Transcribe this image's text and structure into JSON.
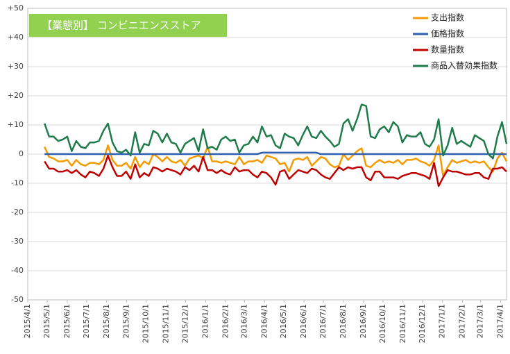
{
  "chart_data": {
    "type": "line",
    "title": "【業態別】 コンビニエンスストア",
    "x": [
      "2015/4/27",
      "2015/5/4",
      "2015/5/11",
      "2015/5/18",
      "2015/5/25",
      "2015/6/1",
      "2015/6/8",
      "2015/6/15",
      "2015/6/22",
      "2015/6/29",
      "2015/7/6",
      "2015/7/13",
      "2015/7/20",
      "2015/7/27",
      "2015/8/3",
      "2015/8/10",
      "2015/8/17",
      "2015/8/24",
      "2015/8/31",
      "2015/9/7",
      "2015/9/14",
      "2015/9/21",
      "2015/9/28",
      "2015/10/5",
      "2015/10/12",
      "2015/10/19",
      "2015/10/26",
      "2015/11/2",
      "2015/11/9",
      "2015/11/16",
      "2015/11/23",
      "2015/11/30",
      "2015/12/7",
      "2015/12/14",
      "2015/12/21",
      "2015/12/28",
      "2016/1/4",
      "2016/1/11",
      "2016/1/18",
      "2016/1/25",
      "2016/2/1",
      "2016/2/8",
      "2016/2/15",
      "2016/2/22",
      "2016/2/29",
      "2016/3/7",
      "2016/3/14",
      "2016/3/21",
      "2016/3/28",
      "2016/4/4",
      "2016/4/11",
      "2016/4/18",
      "2016/4/25",
      "2016/5/2",
      "2016/5/9",
      "2016/5/16",
      "2016/5/23",
      "2016/5/30",
      "2016/6/6",
      "2016/6/13",
      "2016/6/20",
      "2016/6/27",
      "2016/7/4",
      "2016/7/11",
      "2016/7/18",
      "2016/7/25",
      "2016/8/1",
      "2016/8/8",
      "2016/8/15",
      "2016/8/22",
      "2016/8/29",
      "2016/9/5",
      "2016/9/12",
      "2016/9/19",
      "2016/9/26",
      "2016/10/3",
      "2016/10/10",
      "2016/10/17",
      "2016/10/24",
      "2016/10/31",
      "2016/11/7",
      "2016/11/14",
      "2016/11/21",
      "2016/11/28",
      "2016/12/5",
      "2016/12/12",
      "2016/12/19",
      "2016/12/26",
      "2017/1/2",
      "2017/1/9",
      "2017/1/16",
      "2017/1/23",
      "2017/1/30",
      "2017/2/6",
      "2017/2/13",
      "2017/2/20",
      "2017/2/27",
      "2017/3/6",
      "2017/3/13",
      "2017/3/20",
      "2017/3/27",
      "2017/4/3",
      "2017/4/10"
    ],
    "series": [
      {
        "name": "支出指数",
        "color": "#f59b00",
        "values": [
          2.5,
          -1,
          -1.5,
          -2.5,
          -2.5,
          -2,
          -4,
          -2,
          -3.5,
          -4,
          -3,
          -3,
          -3.5,
          -2,
          3,
          -2,
          -4,
          -4,
          -3,
          -5,
          -1,
          -4.5,
          -2.5,
          -3.5,
          0,
          -1,
          -2.5,
          -1,
          -2.5,
          -3,
          -2,
          -4,
          -1.5,
          -1,
          -0.5,
          -1.5,
          2.5,
          -2.5,
          -2.5,
          -3,
          -2.5,
          -3,
          -3.5,
          -1,
          -3.5,
          -2.5,
          -2.5,
          -2,
          -3,
          -0.5,
          -1,
          -1.5,
          -3.5,
          -3,
          -6,
          -2,
          -1.5,
          -2,
          -1,
          -4,
          -2.5,
          -1,
          -1.5,
          -3.5,
          -4.5,
          -4,
          0,
          -2,
          -0.5,
          1,
          2,
          -4,
          -4.5,
          -3,
          -2,
          -3,
          -2.5,
          -3,
          -2,
          -3.5,
          -2,
          -2,
          -1.5,
          -2.5,
          -3,
          -4,
          -2,
          3,
          -7.5,
          -4.5,
          -2,
          -3,
          -2.5,
          -2,
          -3,
          -2.5,
          -3,
          -2.5,
          -4.5,
          -6,
          -1.5,
          0.5,
          -2.5
        ]
      },
      {
        "name": "価格指数",
        "color": "#2f5fae",
        "values": [
          0,
          0,
          0,
          0,
          0,
          0,
          0,
          0,
          0,
          0,
          0,
          0,
          0,
          0,
          0,
          0,
          0,
          0,
          0,
          0,
          0,
          0,
          0,
          0,
          0,
          0,
          0,
          0,
          0,
          0,
          0,
          0,
          0,
          0,
          0,
          0,
          0,
          0,
          0,
          0,
          0,
          0,
          0,
          0,
          0,
          0,
          0,
          0,
          0.5,
          0.5,
          0.5,
          0.5,
          0.5,
          0.5,
          0.5,
          0.5,
          0.5,
          0.5,
          0.5,
          0.5,
          0.5,
          0,
          0,
          0,
          0,
          0,
          0,
          0,
          0,
          0,
          0,
          0,
          0,
          0,
          0,
          0,
          0,
          0,
          0,
          0,
          0,
          0,
          0,
          0,
          0,
          0,
          0,
          0,
          0,
          0,
          0,
          0,
          0,
          0,
          0,
          0,
          0,
          0,
          0,
          0,
          0,
          0,
          0
        ]
      },
      {
        "name": "数量指数",
        "color": "#c00000",
        "values": [
          -2.5,
          -5,
          -5,
          -6,
          -6,
          -5.5,
          -6.5,
          -5.5,
          -7,
          -8,
          -6,
          -6.5,
          -7.5,
          -5,
          -0.5,
          -4.5,
          -7.5,
          -7.5,
          -6,
          -8.5,
          -3.5,
          -8,
          -6.5,
          -7.5,
          -4.5,
          -5,
          -6,
          -5,
          -5.5,
          -6,
          -7,
          -4.5,
          -5.5,
          -4,
          -6,
          -1,
          -5.5,
          -5.5,
          -6.5,
          -5.5,
          -6.5,
          -7,
          -4.5,
          -6,
          -5.5,
          -5.5,
          -7,
          -8,
          -6,
          -6.5,
          -8,
          -10.5,
          -6,
          -5.5,
          -8.5,
          -7,
          -5.5,
          -6,
          -6.5,
          -5,
          -5.5,
          -7,
          -8,
          -8.5,
          -6.5,
          -4.5,
          -5.5,
          -4.5,
          -5,
          -4.5,
          -4.5,
          -8,
          -9,
          -6,
          -6,
          -8,
          -8,
          -8,
          -8.5,
          -7.5,
          -7,
          -6.5,
          -6.5,
          -7,
          -7.5,
          -8.5,
          -3,
          -11,
          -8,
          -5.5,
          -6,
          -6,
          -6.5,
          -7,
          -7,
          -6.5,
          -6.5,
          -8,
          -8.5,
          -5,
          -5,
          -4.5,
          -6
        ]
      },
      {
        "name": "商品入替効果指数",
        "color": "#1e7b4a",
        "values": [
          10.5,
          6,
          6,
          4.5,
          5,
          6,
          1,
          4.5,
          2.5,
          2,
          4,
          4,
          4.5,
          8,
          10.5,
          4,
          1,
          0.5,
          1.5,
          -0.5,
          7.5,
          0.5,
          3.5,
          3,
          8,
          7,
          4,
          7,
          4,
          3.5,
          0.5,
          3.5,
          4.5,
          5.5,
          1,
          8.5,
          2,
          2.5,
          1.5,
          5,
          6,
          4.5,
          5,
          0.5,
          3,
          3.5,
          6,
          4,
          9.5,
          6,
          6.5,
          3,
          2,
          7,
          6,
          5.5,
          3,
          6.5,
          9.5,
          6,
          5.5,
          8,
          6,
          4.5,
          2.5,
          3.5,
          10.5,
          12,
          8,
          12,
          17,
          16.5,
          6,
          5.5,
          8.5,
          9.5,
          7.5,
          11,
          9.5,
          4,
          6.5,
          6,
          6,
          7.5,
          3.5,
          2.5,
          5,
          12,
          -0.5,
          3,
          9,
          3.5,
          4.5,
          3.5,
          2.5,
          6.5,
          5.5,
          4.5,
          0,
          -1.5,
          6,
          11,
          3.5
        ]
      }
    ],
    "xlim": [
      "2015/4/1",
      "2017/4/10"
    ],
    "xticks": [
      "2015/4/1",
      "2015/5/1",
      "2015/6/1",
      "2015/7/1",
      "2015/8/1",
      "2015/9/1",
      "2015/10/1",
      "2015/11/1",
      "2015/12/1",
      "2016/1/1",
      "2016/2/1",
      "2016/3/1",
      "2016/4/1",
      "2016/5/1",
      "2016/6/1",
      "2016/7/1",
      "2016/8/1",
      "2016/9/1",
      "2016/10/1",
      "2016/11/1",
      "2016/12/1",
      "2017/1/1",
      "2017/2/1",
      "2017/3/1",
      "2017/4/1"
    ],
    "ylim": [
      -50,
      50
    ],
    "yticks": [
      {
        "value": 50,
        "label": "+50"
      },
      {
        "value": 40,
        "label": "+40"
      },
      {
        "value": 30,
        "label": "+30"
      },
      {
        "value": 20,
        "label": "+20"
      },
      {
        "value": 10,
        "label": "+10"
      },
      0,
      -10,
      -20,
      -30,
      -40,
      -50
    ],
    "grid": true,
    "legend": "upper-right"
  }
}
